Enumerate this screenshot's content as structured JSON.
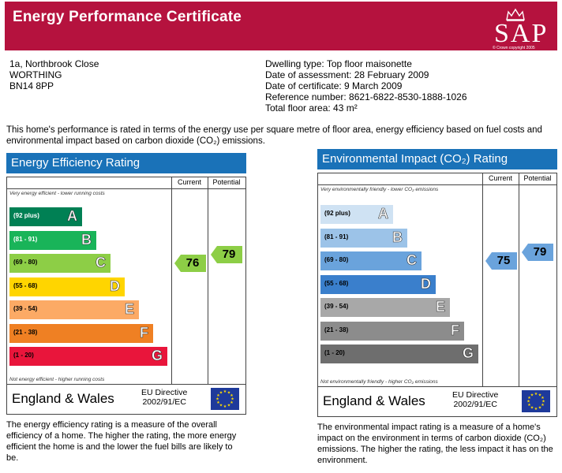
{
  "header": {
    "title": "Energy Performance Certificate",
    "logo_text": "SAP",
    "logo_copyright": "© Crown copyright 2005"
  },
  "address": {
    "line1": "1a, Northbrook Close",
    "line2": "WORTHING",
    "line3": "BN14 8PP"
  },
  "details": {
    "dwelling_type": "Dwelling type: Top floor maisonette",
    "date_assessment": "Date of assessment: 28 February 2009",
    "date_certificate": "Date of certificate: 9 March 2009",
    "reference": "Reference number: 8621-6822-8530-1888-1026",
    "floor_area": "Total floor area: 43 m²"
  },
  "intro": "This home's performance is rated in terms of the energy use per square metre of floor area, energy efficiency based on fuel costs and environmental impact based on carbon dioxide (CO₂) emissions.",
  "energy": {
    "title": "Energy Efficiency Rating",
    "col_current": "Current",
    "col_potential": "Potential",
    "top_note": "Very energy efficient - lower running costs",
    "bottom_note": "Not energy efficient - higher running costs",
    "current": "76",
    "potential": "79",
    "bands": [
      {
        "range": "(92 plus)",
        "letter": "A",
        "color": "#008054"
      },
      {
        "range": "(81 - 91)",
        "letter": "B",
        "color": "#19b459"
      },
      {
        "range": "(69 - 80)",
        "letter": "C",
        "color": "#8dce46"
      },
      {
        "range": "(55 - 68)",
        "letter": "D",
        "color": "#ffd500"
      },
      {
        "range": "(39 - 54)",
        "letter": "E",
        "color": "#fcaa65"
      },
      {
        "range": "(21 - 38)",
        "letter": "F",
        "color": "#ef8023"
      },
      {
        "range": "(1 - 20)",
        "letter": "G",
        "color": "#e9153b"
      }
    ],
    "footer_name": "England & Wales",
    "footer_eu_line1": "EU Directive",
    "footer_eu_line2": "2002/91/EC",
    "description": "The energy efficiency rating is a measure of the overall efficiency of a home. The higher the rating, the more energy efficient the home is and the lower the fuel bills are likely to be."
  },
  "environment": {
    "title": "Environmental Impact (CO₂) Rating",
    "col_current": "Current",
    "col_potential": "Potential",
    "top_note": "Very environmentally friendly - lower CO₂ emissions",
    "bottom_note": "Not environmentally friendly - higher CO₂ emissions",
    "current": "75",
    "potential": "79",
    "bands": [
      {
        "range": "(92 plus)",
        "letter": "A",
        "color": "#cfe2f3"
      },
      {
        "range": "(81 - 91)",
        "letter": "B",
        "color": "#9cc3e8"
      },
      {
        "range": "(69 - 80)",
        "letter": "C",
        "color": "#6aa3dc"
      },
      {
        "range": "(55 - 68)",
        "letter": "D",
        "color": "#3a7fcc"
      },
      {
        "range": "(39 - 54)",
        "letter": "E",
        "color": "#a8a8a8"
      },
      {
        "range": "(21 - 38)",
        "letter": "F",
        "color": "#8c8c8c"
      },
      {
        "range": "(1 - 20)",
        "letter": "G",
        "color": "#6e6e6e"
      }
    ],
    "footer_name": "England & Wales",
    "footer_eu_line1": "EU Directive",
    "footer_eu_line2": "2002/91/EC",
    "description": "The environmental impact rating is a measure of a home's impact on the environment in terms of carbon dioxide (CO₂) emissions. The higher the rating, the less impact it has on the environment."
  }
}
